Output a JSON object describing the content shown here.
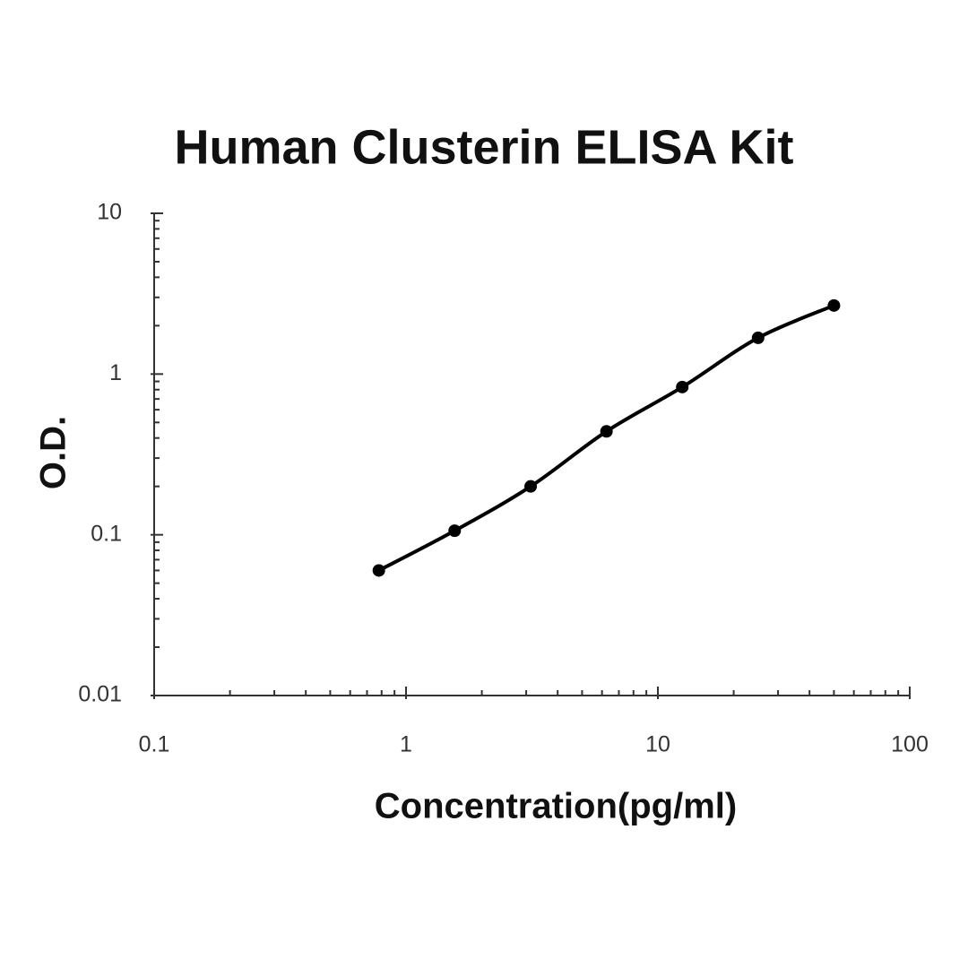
{
  "chart_data": {
    "type": "scatter",
    "title": "Human Clusterin ELISA Kit",
    "x_label": "Concentration(pg/ml)",
    "y_label": "O.D.",
    "x": [
      0.78,
      1.56,
      3.125,
      6.25,
      12.5,
      25,
      50
    ],
    "values": [
      0.06,
      0.106,
      0.2,
      0.44,
      0.83,
      1.68,
      2.67
    ],
    "color": "#000000",
    "xscale": "log",
    "yscale": "log",
    "xlim": [
      0.1,
      100
    ],
    "xticks": [
      0.1,
      1,
      10,
      100
    ],
    "ylim": [
      0.01,
      10
    ],
    "yticks": [
      0.01,
      0.1,
      1,
      10
    ]
  }
}
